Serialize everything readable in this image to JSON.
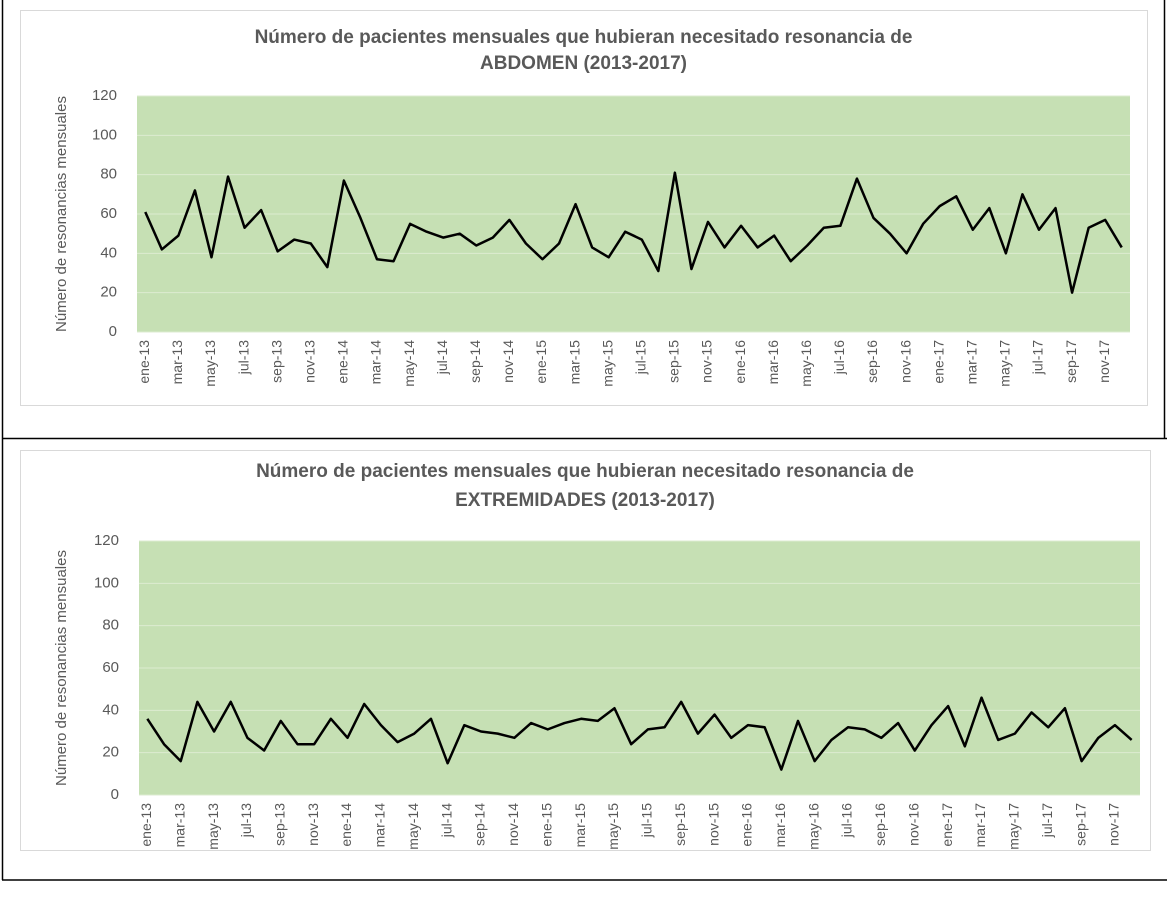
{
  "chart_data": [
    {
      "type": "line",
      "title": [
        "Número de pacientes mensuales que hubieran necesitado resonancia de",
        "ABDOMEN (2013-2017)"
      ],
      "ylabel": "Número de resonancias mensuales",
      "categories": [
        "ene-13",
        null,
        "mar-13",
        null,
        "may-13",
        null,
        "jul-13",
        null,
        "sep-13",
        null,
        "nov-13",
        null,
        "ene-14",
        null,
        "mar-14",
        null,
        "may-14",
        null,
        "jul-14",
        null,
        "sep-14",
        null,
        "nov-14",
        null,
        "ene-15",
        null,
        "mar-15",
        null,
        "may-15",
        null,
        "jul-15",
        null,
        "sep-15",
        null,
        "nov-15",
        null,
        "ene-16",
        null,
        "mar-16",
        null,
        "may-16",
        null,
        "jul-16",
        null,
        "sep-16",
        null,
        "nov-16",
        null,
        "ene-17",
        null,
        "mar-17",
        null,
        "may-17",
        null,
        "jul-17",
        null,
        "sep-17",
        null,
        "nov-17",
        null
      ],
      "values": [
        61,
        42,
        49,
        72,
        38,
        79,
        53,
        62,
        41,
        47,
        45,
        33,
        77,
        58,
        37,
        36,
        55,
        51,
        48,
        50,
        44,
        48,
        57,
        45,
        37,
        45,
        65,
        43,
        38,
        51,
        47,
        31,
        81,
        32,
        56,
        43,
        54,
        43,
        49,
        36,
        44,
        53,
        54,
        78,
        58,
        50,
        40,
        55,
        64,
        69,
        52,
        63,
        40,
        70,
        52,
        63,
        20,
        53,
        57,
        43
      ],
      "color": "#000000",
      "plot_background": "#c6e0b4",
      "grid": true,
      "ylim": [
        0,
        120
      ],
      "yticks": [
        0,
        20,
        40,
        60,
        80,
        100,
        120
      ]
    },
    {
      "type": "line",
      "title": [
        "Número de pacientes mensuales que hubieran necesitado resonancia de",
        "EXTREMIDADES (2013-2017)"
      ],
      "ylabel": "Número de resonancias mensuales",
      "categories": [
        "ene-13",
        null,
        "mar-13",
        null,
        "may-13",
        null,
        "jul-13",
        null,
        "sep-13",
        null,
        "nov-13",
        null,
        "ene-14",
        null,
        "mar-14",
        null,
        "may-14",
        null,
        "jul-14",
        null,
        "sep-14",
        null,
        "nov-14",
        null,
        "ene-15",
        null,
        "mar-15",
        null,
        "may-15",
        null,
        "jul-15",
        null,
        "sep-15",
        null,
        "nov-15",
        null,
        "ene-16",
        null,
        "mar-16",
        null,
        "may-16",
        null,
        "jul-16",
        null,
        "sep-16",
        null,
        "nov-16",
        null,
        "ene-17",
        null,
        "mar-17",
        null,
        "may-17",
        null,
        "jul-17",
        null,
        "sep-17",
        null,
        "nov-17",
        null
      ],
      "values": [
        36,
        24,
        16,
        44,
        30,
        44,
        27,
        21,
        35,
        24,
        24,
        36,
        27,
        43,
        33,
        25,
        29,
        36,
        15,
        33,
        30,
        29,
        27,
        34,
        31,
        34,
        36,
        35,
        41,
        24,
        31,
        32,
        44,
        29,
        38,
        27,
        33,
        32,
        12,
        35,
        16,
        26,
        32,
        31,
        27,
        34,
        21,
        33,
        42,
        23,
        46,
        26,
        29,
        39,
        32,
        41,
        16,
        27,
        33,
        26
      ],
      "color": "#000000",
      "plot_background": "#c6e0b4",
      "grid": true,
      "ylim": [
        0,
        120
      ],
      "yticks": [
        0,
        20,
        40,
        60,
        80,
        100,
        120
      ]
    }
  ]
}
